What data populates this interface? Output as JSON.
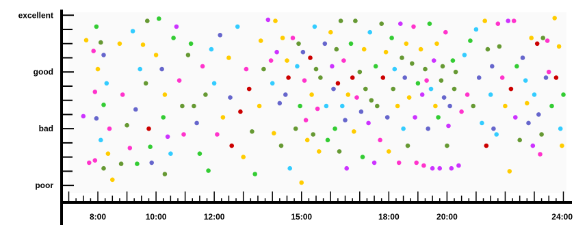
{
  "chart_data": {
    "type": "scatter",
    "title": "",
    "xlabel": "",
    "ylabel": "",
    "y_categories": [
      "poor",
      "bad",
      "good",
      "excellent"
    ],
    "x_tick_labels": [
      "8:00",
      "10:00",
      "12:00",
      "15:00",
      "18:00",
      "20:00",
      "24:00"
    ],
    "x_tick_hours": [
      8,
      10,
      12,
      15,
      18,
      20,
      24
    ],
    "xlim": [
      6.8,
      24.2
    ],
    "ylim": [
      0.7,
      4.1
    ],
    "grid": false,
    "legend": "none",
    "colors": [
      "#ff33cc",
      "#ffcc00",
      "#33ccff",
      "#33cc33",
      "#6666cc",
      "#cc0000",
      "#669933",
      "#cc33ff"
    ],
    "points": [
      {
        "x": 7.95,
        "y": 3.8,
        "c": "#33cc33"
      },
      {
        "x": 7.85,
        "y": 3.37,
        "c": "#ff33cc"
      },
      {
        "x": 8.1,
        "y": 3.52,
        "c": "#669933"
      },
      {
        "x": 8.2,
        "y": 3.3,
        "c": "#6666cc"
      },
      {
        "x": 8.0,
        "y": 3.05,
        "c": "#ffcc00"
      },
      {
        "x": 8.3,
        "y": 2.8,
        "c": "#33ccff"
      },
      {
        "x": 7.9,
        "y": 2.65,
        "c": "#ff33cc"
      },
      {
        "x": 8.2,
        "y": 2.42,
        "c": "#33cc33"
      },
      {
        "x": 7.95,
        "y": 2.18,
        "c": "#6666cc"
      },
      {
        "x": 8.4,
        "y": 2.0,
        "c": "#ff33cc"
      },
      {
        "x": 8.1,
        "y": 1.8,
        "c": "#33ccff"
      },
      {
        "x": 8.35,
        "y": 1.56,
        "c": "#ffcc00"
      },
      {
        "x": 7.9,
        "y": 1.44,
        "c": "#ff33cc"
      },
      {
        "x": 8.2,
        "y": 1.3,
        "c": "#669933"
      },
      {
        "x": 8.5,
        "y": 1.1,
        "c": "#ffcc00"
      },
      {
        "x": 7.6,
        "y": 3.56,
        "c": "#ffcc00"
      },
      {
        "x": 7.5,
        "y": 2.22,
        "c": "#cc33ff"
      },
      {
        "x": 7.7,
        "y": 1.4,
        "c": "#ff33cc"
      },
      {
        "x": 8.75,
        "y": 3.5,
        "c": "#ffcc00"
      },
      {
        "x": 8.85,
        "y": 2.6,
        "c": "#ff33cc"
      },
      {
        "x": 8.8,
        "y": 1.38,
        "c": "#669933"
      },
      {
        "x": 9.0,
        "y": 2.06,
        "c": "#669933"
      },
      {
        "x": 9.1,
        "y": 1.66,
        "c": "#ff33cc"
      },
      {
        "x": 9.2,
        "y": 3.72,
        "c": "#33ccff"
      },
      {
        "x": 9.3,
        "y": 2.34,
        "c": "#6666cc"
      },
      {
        "x": 9.35,
        "y": 1.38,
        "c": "#33cc33"
      },
      {
        "x": 9.45,
        "y": 3.05,
        "c": "#33ccff"
      },
      {
        "x": 9.55,
        "y": 3.48,
        "c": "#ffcc00"
      },
      {
        "x": 9.7,
        "y": 3.9,
        "c": "#669933"
      },
      {
        "x": 9.65,
        "y": 2.8,
        "c": "#669933"
      },
      {
        "x": 9.75,
        "y": 2.0,
        "c": "#cc0000"
      },
      {
        "x": 9.8,
        "y": 1.68,
        "c": "#33cc33"
      },
      {
        "x": 9.85,
        "y": 1.4,
        "c": "#6666cc"
      },
      {
        "x": 10.1,
        "y": 3.94,
        "c": "#33cc33"
      },
      {
        "x": 10.0,
        "y": 3.3,
        "c": "#ffcc00"
      },
      {
        "x": 10.2,
        "y": 3.05,
        "c": "#6666cc"
      },
      {
        "x": 10.3,
        "y": 2.6,
        "c": "#ffcc00"
      },
      {
        "x": 10.25,
        "y": 2.2,
        "c": "#33cc33"
      },
      {
        "x": 10.4,
        "y": 1.86,
        "c": "#cc33ff"
      },
      {
        "x": 10.5,
        "y": 1.56,
        "c": "#33ccff"
      },
      {
        "x": 10.3,
        "y": 1.2,
        "c": "#669933"
      },
      {
        "x": 10.6,
        "y": 3.6,
        "c": "#33cc33"
      },
      {
        "x": 10.7,
        "y": 3.8,
        "c": "#cc33ff"
      },
      {
        "x": 10.8,
        "y": 2.85,
        "c": "#ff33cc"
      },
      {
        "x": 10.9,
        "y": 2.4,
        "c": "#669933"
      },
      {
        "x": 10.95,
        "y": 1.9,
        "c": "#ff33cc"
      },
      {
        "x": 11.1,
        "y": 3.3,
        "c": "#669933"
      },
      {
        "x": 11.2,
        "y": 3.5,
        "c": "#33cc33"
      },
      {
        "x": 11.3,
        "y": 2.4,
        "c": "#669933"
      },
      {
        "x": 11.4,
        "y": 2.1,
        "c": "#6666cc"
      },
      {
        "x": 11.5,
        "y": 1.56,
        "c": "#33cc33"
      },
      {
        "x": 11.6,
        "y": 3.1,
        "c": "#ff33cc"
      },
      {
        "x": 11.7,
        "y": 2.6,
        "c": "#669933"
      },
      {
        "x": 11.8,
        "y": 1.26,
        "c": "#33cc33"
      },
      {
        "x": 11.9,
        "y": 3.4,
        "c": "#33ccff"
      },
      {
        "x": 12.0,
        "y": 2.8,
        "c": "#33ccff"
      },
      {
        "x": 12.1,
        "y": 1.9,
        "c": "#ff33cc"
      },
      {
        "x": 12.2,
        "y": 3.65,
        "c": "#6666cc"
      },
      {
        "x": 12.3,
        "y": 2.2,
        "c": "#ffcc00"
      },
      {
        "x": 12.5,
        "y": 3.25,
        "c": "#ffcc00"
      },
      {
        "x": 12.55,
        "y": 2.55,
        "c": "#6666cc"
      },
      {
        "x": 12.6,
        "y": 1.7,
        "c": "#cc0000"
      },
      {
        "x": 12.8,
        "y": 3.8,
        "c": "#33ccff"
      },
      {
        "x": 12.9,
        "y": 2.3,
        "c": "#cc0000"
      },
      {
        "x": 13.0,
        "y": 1.5,
        "c": "#ffcc00"
      },
      {
        "x": 13.1,
        "y": 3.05,
        "c": "#ff33cc"
      },
      {
        "x": 13.2,
        "y": 2.7,
        "c": "#cc0000"
      },
      {
        "x": 13.3,
        "y": 1.95,
        "c": "#669933"
      },
      {
        "x": 13.4,
        "y": 1.2,
        "c": "#33cc33"
      },
      {
        "x": 13.55,
        "y": 2.4,
        "c": "#ffcc00"
      },
      {
        "x": 13.6,
        "y": 3.55,
        "c": "#ffcc00"
      },
      {
        "x": 13.7,
        "y": 3.05,
        "c": "#669933"
      },
      {
        "x": 13.85,
        "y": 3.92,
        "c": "#cc33ff"
      },
      {
        "x": 13.95,
        "y": 3.2,
        "c": "#ff33cc"
      },
      {
        "x": 14.0,
        "y": 2.8,
        "c": "#33ccff"
      },
      {
        "x": 14.05,
        "y": 1.92,
        "c": "#ffcc00"
      },
      {
        "x": 14.1,
        "y": 3.9,
        "c": "#ffcc00"
      },
      {
        "x": 14.15,
        "y": 3.35,
        "c": "#cc33ff"
      },
      {
        "x": 14.25,
        "y": 2.45,
        "c": "#6666cc"
      },
      {
        "x": 14.3,
        "y": 1.7,
        "c": "#669933"
      },
      {
        "x": 14.35,
        "y": 3.6,
        "c": "#ffcc00"
      },
      {
        "x": 14.45,
        "y": 2.6,
        "c": "#6666cc"
      },
      {
        "x": 14.5,
        "y": 3.2,
        "c": "#ffcc00"
      },
      {
        "x": 14.55,
        "y": 2.9,
        "c": "#cc0000"
      },
      {
        "x": 14.6,
        "y": 1.3,
        "c": "#33ccff"
      },
      {
        "x": 14.7,
        "y": 3.6,
        "c": "#ff33cc"
      },
      {
        "x": 14.8,
        "y": 2.0,
        "c": "#669933"
      },
      {
        "x": 14.85,
        "y": 3.1,
        "c": "#33ccff"
      },
      {
        "x": 14.9,
        "y": 3.5,
        "c": "#669933"
      },
      {
        "x": 14.95,
        "y": 2.4,
        "c": "#33cc33"
      },
      {
        "x": 15.0,
        "y": 1.05,
        "c": "#ffcc00"
      },
      {
        "x": 15.05,
        "y": 3.35,
        "c": "#6666cc"
      },
      {
        "x": 15.1,
        "y": 2.85,
        "c": "#ff33cc"
      },
      {
        "x": 15.15,
        "y": 2.15,
        "c": "#ff33cc"
      },
      {
        "x": 15.2,
        "y": 1.8,
        "c": "#ffcc00"
      },
      {
        "x": 15.3,
        "y": 3.25,
        "c": "#cc0000"
      },
      {
        "x": 15.35,
        "y": 2.6,
        "c": "#ffcc00"
      },
      {
        "x": 15.4,
        "y": 1.9,
        "c": "#669933"
      },
      {
        "x": 15.45,
        "y": 3.8,
        "c": "#33ccff"
      },
      {
        "x": 15.5,
        "y": 3.05,
        "c": "#669933"
      },
      {
        "x": 15.55,
        "y": 2.35,
        "c": "#ff33cc"
      },
      {
        "x": 15.6,
        "y": 1.6,
        "c": "#ffcc00"
      },
      {
        "x": 15.65,
        "y": 2.9,
        "c": "#669933"
      },
      {
        "x": 15.8,
        "y": 3.5,
        "c": "#6666cc"
      },
      {
        "x": 15.85,
        "y": 2.4,
        "c": "#33ccff"
      },
      {
        "x": 15.9,
        "y": 1.8,
        "c": "#33cc33"
      },
      {
        "x": 16.0,
        "y": 3.7,
        "c": "#ffcc00"
      },
      {
        "x": 16.05,
        "y": 3.1,
        "c": "#cc33ff"
      },
      {
        "x": 16.1,
        "y": 2.7,
        "c": "#6666cc"
      },
      {
        "x": 16.15,
        "y": 2.0,
        "c": "#33cc33"
      },
      {
        "x": 16.2,
        "y": 3.4,
        "c": "#669933"
      },
      {
        "x": 16.25,
        "y": 2.8,
        "c": "#cc0000"
      },
      {
        "x": 16.3,
        "y": 1.6,
        "c": "#669933"
      },
      {
        "x": 16.35,
        "y": 3.9,
        "c": "#669933"
      },
      {
        "x": 16.4,
        "y": 2.4,
        "c": "#33ccff"
      },
      {
        "x": 16.45,
        "y": 3.2,
        "c": "#ff33cc"
      },
      {
        "x": 16.5,
        "y": 2.15,
        "c": "#6666cc"
      },
      {
        "x": 16.55,
        "y": 1.3,
        "c": "#cc33ff"
      },
      {
        "x": 16.6,
        "y": 2.6,
        "c": "#ffcc00"
      },
      {
        "x": 16.7,
        "y": 3.5,
        "c": "#33cc33"
      },
      {
        "x": 16.75,
        "y": 2.9,
        "c": "#cc0000"
      },
      {
        "x": 16.8,
        "y": 1.95,
        "c": "#ffcc00"
      },
      {
        "x": 16.85,
        "y": 3.9,
        "c": "#669933"
      },
      {
        "x": 16.9,
        "y": 2.55,
        "c": "#ff33cc"
      },
      {
        "x": 17.0,
        "y": 3.0,
        "c": "#669933"
      },
      {
        "x": 17.05,
        "y": 2.3,
        "c": "#6666cc"
      },
      {
        "x": 17.1,
        "y": 1.5,
        "c": "#33cc33"
      },
      {
        "x": 17.15,
        "y": 3.4,
        "c": "#ffcc00"
      },
      {
        "x": 17.2,
        "y": 2.7,
        "c": "#669933"
      },
      {
        "x": 17.3,
        "y": 2.1,
        "c": "#cc33ff"
      },
      {
        "x": 17.35,
        "y": 3.7,
        "c": "#33ccff"
      },
      {
        "x": 17.4,
        "y": 2.5,
        "c": "#669933"
      },
      {
        "x": 17.5,
        "y": 1.4,
        "c": "#cc33ff"
      },
      {
        "x": 17.55,
        "y": 3.1,
        "c": "#33cc33"
      },
      {
        "x": 17.6,
        "y": 2.4,
        "c": "#669933"
      },
      {
        "x": 17.7,
        "y": 1.8,
        "c": "#ff33cc"
      },
      {
        "x": 17.75,
        "y": 3.85,
        "c": "#669933"
      },
      {
        "x": 17.8,
        "y": 2.9,
        "c": "#cc0000"
      },
      {
        "x": 17.9,
        "y": 3.35,
        "c": "#ffcc00"
      },
      {
        "x": 17.95,
        "y": 2.2,
        "c": "#6666cc"
      },
      {
        "x": 18.0,
        "y": 1.6,
        "c": "#ffcc00"
      },
      {
        "x": 18.1,
        "y": 3.6,
        "c": "#33cc33"
      },
      {
        "x": 18.15,
        "y": 2.7,
        "c": "#669933"
      },
      {
        "x": 18.2,
        "y": 3.05,
        "c": "#33ccff"
      },
      {
        "x": 18.3,
        "y": 2.4,
        "c": "#ffcc00"
      },
      {
        "x": 18.35,
        "y": 1.4,
        "c": "#ff33cc"
      },
      {
        "x": 18.4,
        "y": 3.85,
        "c": "#cc33ff"
      },
      {
        "x": 18.45,
        "y": 3.25,
        "c": "#669933"
      },
      {
        "x": 18.5,
        "y": 2.0,
        "c": "#33ccff"
      },
      {
        "x": 18.55,
        "y": 2.9,
        "c": "#6666cc"
      },
      {
        "x": 18.6,
        "y": 3.5,
        "c": "#ffcc00"
      },
      {
        "x": 18.65,
        "y": 1.7,
        "c": "#669933"
      },
      {
        "x": 18.7,
        "y": 2.55,
        "c": "#ffcc00"
      },
      {
        "x": 18.8,
        "y": 3.15,
        "c": "#669933"
      },
      {
        "x": 18.85,
        "y": 3.8,
        "c": "#ff33cc"
      },
      {
        "x": 18.9,
        "y": 2.2,
        "c": "#cc33ff"
      },
      {
        "x": 18.95,
        "y": 1.4,
        "c": "#ff33cc"
      },
      {
        "x": 19.0,
        "y": 2.8,
        "c": "#33cc33"
      },
      {
        "x": 19.1,
        "y": 3.4,
        "c": "#ffcc00"
      },
      {
        "x": 19.15,
        "y": 2.6,
        "c": "#cc33ff"
      },
      {
        "x": 19.2,
        "y": 1.35,
        "c": "#ff33cc"
      },
      {
        "x": 19.25,
        "y": 3.05,
        "c": "#669933"
      },
      {
        "x": 19.3,
        "y": 2.85,
        "c": "#ff33cc"
      },
      {
        "x": 19.35,
        "y": 2.0,
        "c": "#6666cc"
      },
      {
        "x": 19.4,
        "y": 3.85,
        "c": "#33cc33"
      },
      {
        "x": 19.45,
        "y": 2.7,
        "c": "#33ccff"
      },
      {
        "x": 19.5,
        "y": 1.3,
        "c": "#cc33ff"
      },
      {
        "x": 19.55,
        "y": 3.2,
        "c": "#cc33ff"
      },
      {
        "x": 19.6,
        "y": 2.4,
        "c": "#ffcc00"
      },
      {
        "x": 19.65,
        "y": 3.5,
        "c": "#ffcc00"
      },
      {
        "x": 19.7,
        "y": 2.2,
        "c": "#33cc33"
      },
      {
        "x": 19.75,
        "y": 1.3,
        "c": "#cc33ff"
      },
      {
        "x": 19.8,
        "y": 2.85,
        "c": "#669933"
      },
      {
        "x": 19.85,
        "y": 3.1,
        "c": "#669933"
      },
      {
        "x": 19.9,
        "y": 2.55,
        "c": "#6666cc"
      },
      {
        "x": 19.95,
        "y": 3.7,
        "c": "#ff33cc"
      },
      {
        "x": 20.0,
        "y": 1.7,
        "c": "#669933"
      },
      {
        "x": 20.05,
        "y": 2.05,
        "c": "#cc33ff"
      },
      {
        "x": 20.1,
        "y": 2.4,
        "c": "#6666cc"
      },
      {
        "x": 20.15,
        "y": 1.3,
        "c": "#cc33ff"
      },
      {
        "x": 20.2,
        "y": 3.2,
        "c": "#33cc33"
      },
      {
        "x": 20.25,
        "y": 2.7,
        "c": "#669933"
      },
      {
        "x": 20.3,
        "y": 3.0,
        "c": "#669933"
      },
      {
        "x": 20.4,
        "y": 1.35,
        "c": "#cc33ff"
      },
      {
        "x": 20.5,
        "y": 2.3,
        "c": "#ff33cc"
      },
      {
        "x": 20.6,
        "y": 3.3,
        "c": "#33ccff"
      },
      {
        "x": 20.7,
        "y": 2.6,
        "c": "#ff33cc"
      },
      {
        "x": 20.8,
        "y": 3.55,
        "c": "#33cc33"
      },
      {
        "x": 20.9,
        "y": 2.4,
        "c": "#669933"
      },
      {
        "x": 21.0,
        "y": 3.75,
        "c": "#33ccff"
      },
      {
        "x": 21.1,
        "y": 2.9,
        "c": "#6666cc"
      },
      {
        "x": 21.2,
        "y": 2.1,
        "c": "#33ccff"
      },
      {
        "x": 21.3,
        "y": 3.9,
        "c": "#ffcc00"
      },
      {
        "x": 21.35,
        "y": 1.7,
        "c": "#cc0000"
      },
      {
        "x": 21.4,
        "y": 3.4,
        "c": "#669933"
      },
      {
        "x": 21.5,
        "y": 2.6,
        "c": "#33ccff"
      },
      {
        "x": 21.55,
        "y": 3.1,
        "c": "#6666cc"
      },
      {
        "x": 21.6,
        "y": 2.0,
        "c": "#6666cc"
      },
      {
        "x": 21.7,
        "y": 1.9,
        "c": "#33ccff"
      },
      {
        "x": 21.75,
        "y": 3.85,
        "c": "#ff33cc"
      },
      {
        "x": 21.8,
        "y": 3.45,
        "c": "#669933"
      },
      {
        "x": 21.9,
        "y": 2.9,
        "c": "#ff33cc"
      },
      {
        "x": 22.0,
        "y": 2.4,
        "c": "#ffcc00"
      },
      {
        "x": 22.1,
        "y": 3.9,
        "c": "#cc33ff"
      },
      {
        "x": 22.15,
        "y": 1.25,
        "c": "#ffcc00"
      },
      {
        "x": 22.2,
        "y": 2.7,
        "c": "#cc0000"
      },
      {
        "x": 22.3,
        "y": 3.9,
        "c": "#ff33cc"
      },
      {
        "x": 22.35,
        "y": 2.2,
        "c": "#cc33ff"
      },
      {
        "x": 22.4,
        "y": 3.1,
        "c": "#33cc33"
      },
      {
        "x": 22.5,
        "y": 1.8,
        "c": "#669933"
      },
      {
        "x": 22.6,
        "y": 3.25,
        "c": "#6666cc"
      },
      {
        "x": 22.7,
        "y": 2.85,
        "c": "#33ccff"
      },
      {
        "x": 22.75,
        "y": 2.45,
        "c": "#ffcc00"
      },
      {
        "x": 22.8,
        "y": 2.1,
        "c": "#6666cc"
      },
      {
        "x": 22.9,
        "y": 3.6,
        "c": "#ffcc00"
      },
      {
        "x": 22.95,
        "y": 1.7,
        "c": "#cc33ff"
      },
      {
        "x": 23.0,
        "y": 2.6,
        "c": "#33ccff"
      },
      {
        "x": 23.1,
        "y": 3.5,
        "c": "#cc0000"
      },
      {
        "x": 23.15,
        "y": 2.25,
        "c": "#6666cc"
      },
      {
        "x": 23.2,
        "y": 1.55,
        "c": "#ff33cc"
      },
      {
        "x": 23.25,
        "y": 1.9,
        "c": "#669933"
      },
      {
        "x": 23.3,
        "y": 3.6,
        "c": "#669933"
      },
      {
        "x": 23.4,
        "y": 2.9,
        "c": "#6666cc"
      },
      {
        "x": 23.45,
        "y": 3.55,
        "c": "#ff33cc"
      },
      {
        "x": 23.5,
        "y": 3.0,
        "c": "#ff33cc"
      },
      {
        "x": 23.6,
        "y": 2.4,
        "c": "#33cc33"
      },
      {
        "x": 23.7,
        "y": 3.95,
        "c": "#ffcc00"
      },
      {
        "x": 23.75,
        "y": 2.9,
        "c": "#cc0000"
      },
      {
        "x": 23.85,
        "y": 3.45,
        "c": "#ffcc00"
      },
      {
        "x": 23.9,
        "y": 2.0,
        "c": "#33ccff"
      },
      {
        "x": 23.95,
        "y": 1.7,
        "c": "#ffcc00"
      },
      {
        "x": 24.0,
        "y": 2.6,
        "c": "#33cc33"
      }
    ]
  }
}
